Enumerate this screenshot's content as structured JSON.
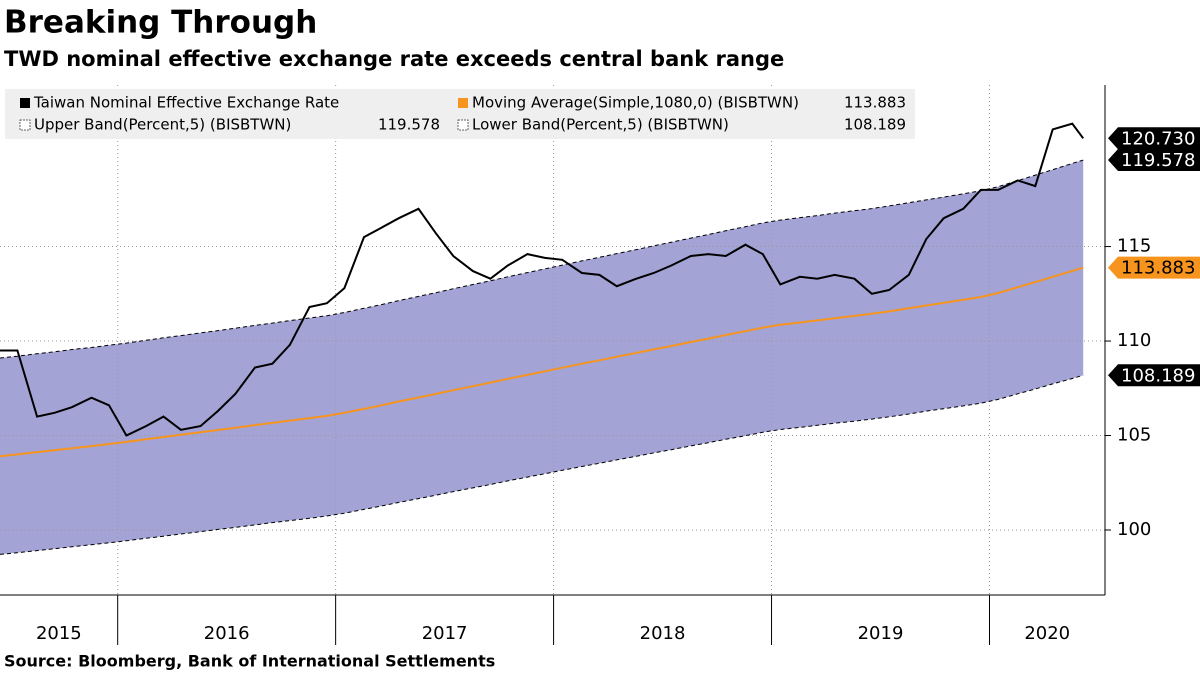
{
  "chart_data": {
    "type": "line",
    "title": "Breaking Through",
    "subtitle": "TWD nominal effective exchange rate exceeds central bank range",
    "source": "Source: Bloomberg, Bank of International Settlements",
    "x": [
      2015.46,
      2015.54,
      2015.63,
      2015.71,
      2015.79,
      2015.88,
      2015.96,
      2016.04,
      2016.13,
      2016.21,
      2016.29,
      2016.38,
      2016.46,
      2016.54,
      2016.63,
      2016.71,
      2016.79,
      2016.88,
      2016.96,
      2017.04,
      2017.13,
      2017.21,
      2017.29,
      2017.38,
      2017.46,
      2017.54,
      2017.63,
      2017.71,
      2017.79,
      2017.88,
      2017.96,
      2018.04,
      2018.13,
      2018.21,
      2018.29,
      2018.38,
      2018.46,
      2018.54,
      2018.63,
      2018.71,
      2018.79,
      2018.88,
      2018.96,
      2019.04,
      2019.13,
      2019.21,
      2019.29,
      2019.38,
      2019.46,
      2019.54,
      2019.63,
      2019.71,
      2019.79,
      2019.88,
      2019.96,
      2020.04,
      2020.13,
      2020.21,
      2020.29,
      2020.38,
      2020.43
    ],
    "xlim": [
      2015.46,
      2020.53
    ],
    "xticks": [
      2015,
      2016,
      2017,
      2018,
      2019,
      2020
    ],
    "ylim": [
      96.56,
      123.55
    ],
    "yticks": [
      100,
      105,
      110,
      115
    ],
    "grid": true,
    "band_fill": "#a3a3d6",
    "series": [
      {
        "name": "Taiwan Nominal Effective Exchange Rate",
        "color": "#000000",
        "legend_shows_value": false,
        "last_value_label": "120.730",
        "values": [
          109.5,
          109.5,
          106.0,
          106.2,
          106.5,
          107.0,
          106.6,
          105.0,
          105.5,
          106.0,
          105.3,
          105.5,
          106.3,
          107.2,
          108.6,
          108.8,
          109.8,
          111.8,
          112.0,
          112.8,
          115.5,
          116.0,
          116.5,
          117.0,
          115.7,
          114.5,
          113.7,
          113.3,
          114.0,
          114.6,
          114.4,
          114.3,
          113.6,
          113.5,
          112.9,
          113.3,
          113.6,
          114.0,
          114.5,
          114.6,
          114.5,
          115.1,
          114.6,
          113.0,
          113.4,
          113.3,
          113.5,
          113.3,
          112.5,
          112.7,
          113.5,
          115.4,
          116.5,
          117.0,
          118.0,
          118.0,
          118.5,
          118.2,
          121.2,
          121.5,
          120.73
        ]
      },
      {
        "name": "Moving Average(Simple,1080,0) (BISBTWN)",
        "color": "#f7941d",
        "legend_shows_value": true,
        "last_value_label": "113.883",
        "values": [
          103.9,
          104.0,
          104.12,
          104.22,
          104.33,
          104.44,
          104.55,
          104.66,
          104.8,
          104.92,
          105.04,
          105.17,
          105.29,
          105.41,
          105.55,
          105.67,
          105.79,
          105.92,
          106.04,
          106.2,
          106.41,
          106.6,
          106.8,
          107.01,
          107.2,
          107.4,
          107.61,
          107.8,
          108.0,
          108.21,
          108.4,
          108.59,
          108.8,
          108.98,
          109.17,
          109.37,
          109.56,
          109.74,
          109.95,
          110.13,
          110.32,
          110.52,
          110.71,
          110.86,
          110.98,
          111.09,
          111.21,
          111.33,
          111.44,
          111.57,
          111.73,
          111.88,
          112.02,
          112.18,
          112.33,
          112.54,
          112.85,
          113.12,
          113.4,
          113.71,
          113.883
        ]
      },
      {
        "name": "Upper Band(Percent,5) (BISBTWN)",
        "color": "#000000",
        "legend_shows_value": true,
        "last_value_label": "119.578",
        "dashed": true,
        "values": [
          109.1,
          109.2,
          109.33,
          109.43,
          109.55,
          109.66,
          109.78,
          109.89,
          110.04,
          110.17,
          110.29,
          110.43,
          110.55,
          110.68,
          110.83,
          110.95,
          111.08,
          111.22,
          111.34,
          111.51,
          111.73,
          111.93,
          112.14,
          112.36,
          112.56,
          112.77,
          112.99,
          113.19,
          113.4,
          113.62,
          113.82,
          114.02,
          114.24,
          114.43,
          114.63,
          114.84,
          115.04,
          115.23,
          115.45,
          115.64,
          115.84,
          116.05,
          116.25,
          116.4,
          116.53,
          116.64,
          116.77,
          116.9,
          117.01,
          117.15,
          117.32,
          117.47,
          117.62,
          117.79,
          117.95,
          118.17,
          118.49,
          118.78,
          119.07,
          119.4,
          119.578
        ]
      },
      {
        "name": "Lower Band(Percent,5) (BISBTWN)",
        "color": "#000000",
        "legend_shows_value": true,
        "last_value_label": "108.189",
        "dashed": true,
        "values": [
          98.71,
          98.8,
          98.91,
          99.01,
          99.11,
          99.22,
          99.32,
          99.43,
          99.56,
          99.67,
          99.79,
          99.91,
          100.03,
          100.14,
          100.27,
          100.39,
          100.5,
          100.62,
          100.74,
          100.89,
          101.09,
          101.27,
          101.46,
          101.66,
          101.84,
          102.03,
          102.23,
          102.41,
          102.6,
          102.8,
          102.98,
          103.16,
          103.36,
          103.53,
          103.71,
          103.9,
          104.08,
          104.25,
          104.45,
          104.62,
          104.8,
          104.99,
          105.17,
          105.32,
          105.43,
          105.54,
          105.65,
          105.76,
          105.87,
          105.99,
          106.14,
          106.29,
          106.42,
          106.57,
          106.71,
          106.91,
          107.21,
          107.46,
          107.73,
          108.02,
          108.189
        ]
      }
    ]
  }
}
